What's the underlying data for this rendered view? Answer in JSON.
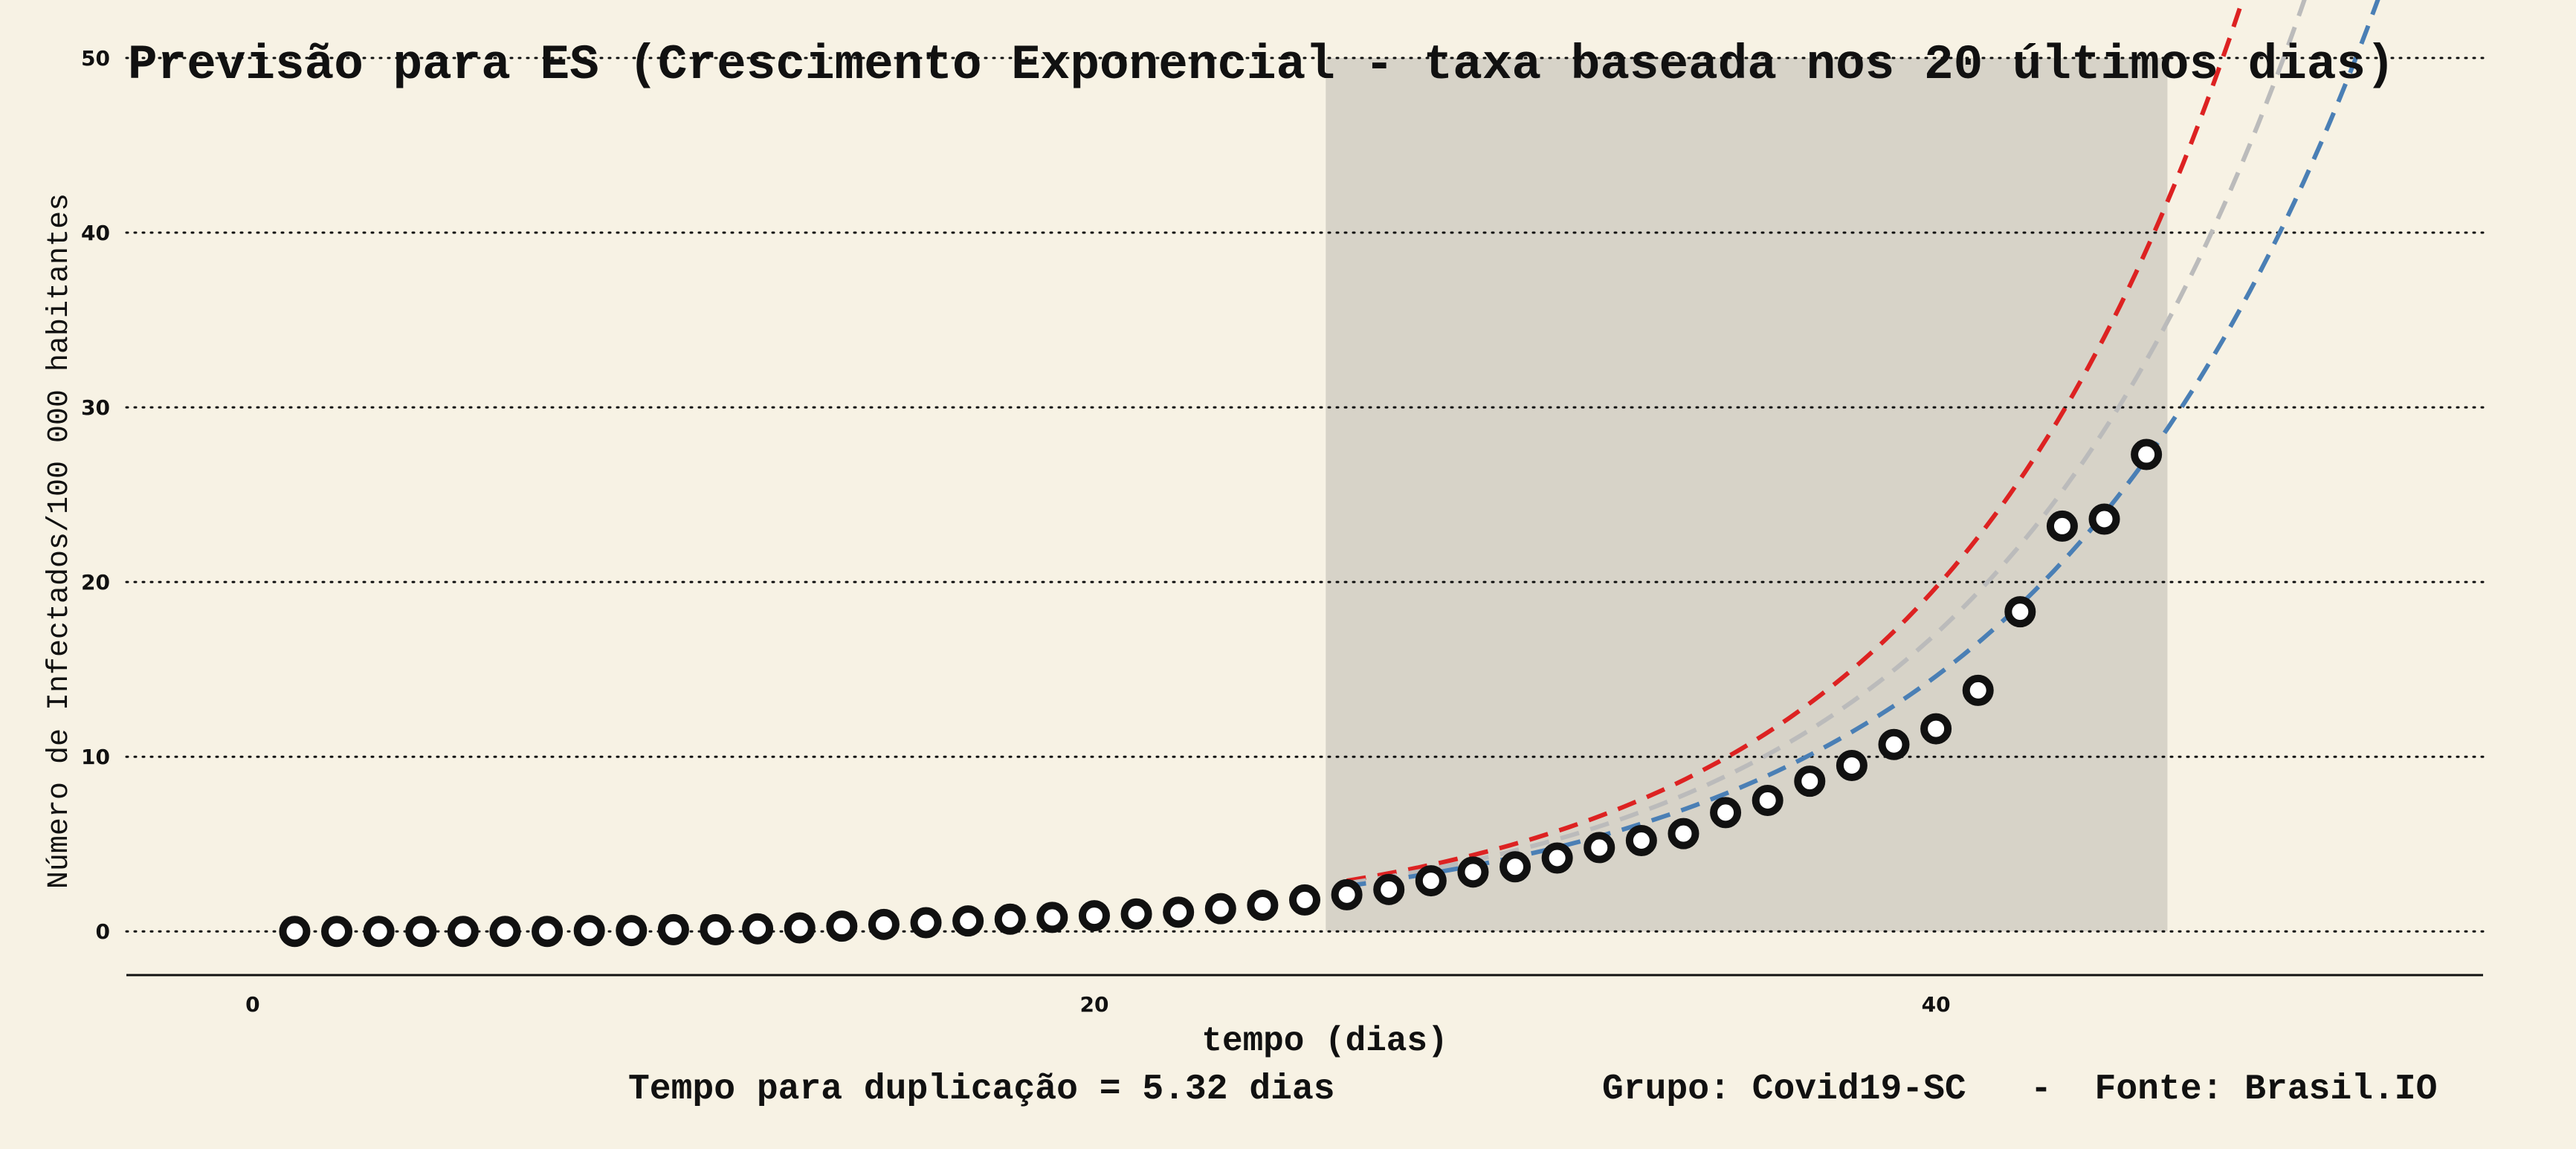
{
  "chart_data": {
    "type": "scatter",
    "title": "Previsão para ES (Crescimento Exponencial - taxa baseada nos 20 últimos dias)",
    "xlabel": "tempo (dias)",
    "ylabel": "Número de Infectados/100 000 habitantes",
    "xlim": [
      -3,
      53
    ],
    "ylim": [
      -2.5,
      50
    ],
    "x_ticks": [
      0,
      20,
      40
    ],
    "y_ticks": [
      0,
      10,
      20,
      30,
      40,
      50
    ],
    "grid": "horizontal dotted",
    "shaded_region": {
      "x_start": 25.5,
      "x_end": 45.5
    },
    "points": {
      "x": [
        1,
        2,
        3,
        4,
        5,
        6,
        7,
        8,
        9,
        10,
        11,
        12,
        13,
        14,
        15,
        16,
        17,
        18,
        19,
        20,
        21,
        22,
        23,
        24,
        25,
        26,
        27,
        28,
        29,
        30,
        31,
        32,
        33,
        34,
        35,
        36,
        37,
        38,
        39,
        40,
        41,
        42,
        43,
        44,
        45
      ],
      "y": [
        0,
        0,
        0,
        0,
        0,
        0,
        0,
        0.05,
        0.05,
        0.1,
        0.1,
        0.15,
        0.2,
        0.3,
        0.4,
        0.5,
        0.6,
        0.7,
        0.8,
        0.9,
        1.0,
        1.1,
        1.3,
        1.5,
        1.8,
        2.1,
        2.4,
        2.9,
        3.4,
        3.7,
        4.2,
        4.8,
        5.2,
        5.6,
        6.8,
        7.5,
        8.6,
        9.5,
        10.7,
        11.6,
        13.8,
        18.3,
        23.2,
        23.6,
        27.3
      ]
    },
    "series": [
      {
        "style": "dashed",
        "color": "#dd2222",
        "x_start": 26,
        "x_end": 48.5,
        "y_start": 2.9,
        "growth": 0.1368
      },
      {
        "style": "dashed",
        "color": "#bbbbbb",
        "x_start": 26,
        "x_end": 50.5,
        "y_start": 2.75,
        "growth": 0.1303
      },
      {
        "style": "dashed",
        "color": "#4a7fb5",
        "x_start": 26,
        "x_end": 51.5,
        "y_start": 2.6,
        "growth": 0.1233
      }
    ],
    "colors": {
      "background": "#f7f2e4",
      "shade": "#d7d3c8",
      "point_edge": "#111111",
      "point_fill": "#ffffff"
    }
  },
  "footer": {
    "doubling_time": "Tempo para duplicação = 5.32 dias",
    "source": "Grupo: Covid19-SC   -  Fonte: Brasil.IO"
  }
}
